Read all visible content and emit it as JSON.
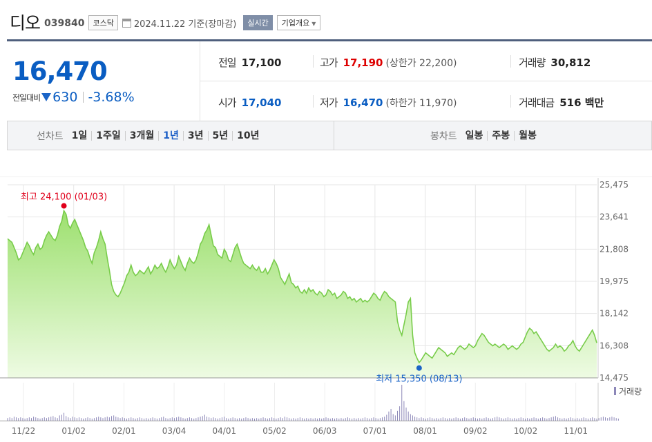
{
  "header": {
    "name": "디오",
    "code": "039840",
    "market": "코스닥",
    "date": "2024.11.22",
    "basis": "기준(장마감)",
    "realtime_label": "실시간",
    "company_label": "기업개요"
  },
  "summary": {
    "price": "16,470",
    "change_label": "전일대비",
    "change": "630",
    "change_pct": "-3.68%",
    "prev_label": "전일",
    "prev": "17,100",
    "high_label": "고가",
    "high": "17,190",
    "upper_limit": "(상한가 22,200)",
    "volume_label": "거래량",
    "volume": "30,812",
    "open_label": "시가",
    "open": "17,040",
    "low_label": "저가",
    "low": "16,470",
    "lower_limit": "(하한가 11,970)",
    "amount_label": "거래대금",
    "amount": "516 백만"
  },
  "period_bar": {
    "line_label": "선차트",
    "periods": [
      "1일",
      "1주일",
      "3개월",
      "1년",
      "3년",
      "5년",
      "10년"
    ],
    "active": "1년",
    "candle_label": "봉차트",
    "candle_periods": [
      "일봉",
      "주봉",
      "월봉"
    ]
  },
  "colors": {
    "line": "#78cc4a",
    "fill_top": "#9de06f",
    "fill_bottom": "#eefbe3",
    "max_marker": "#e0001b",
    "min_marker": "#1b64c7",
    "volume_bar": "#8c87b8"
  },
  "chart_data": {
    "type": "area",
    "y_ticks": [
      "25,475",
      "23,641",
      "21,808",
      "19,975",
      "18,142",
      "16,308",
      "14,475"
    ],
    "ylim": [
      14475,
      25475
    ],
    "x_labels": [
      "11/22",
      "01/02",
      "02/01",
      "03/04",
      "04/01",
      "05/02",
      "06/03",
      "07/01",
      "08/01",
      "09/02",
      "10/02",
      "11/01"
    ],
    "max_annotation": "최고 24,100 (01/03)",
    "min_annotation": "최저 15,350 (08/13)",
    "volume_legend": "거래량",
    "series": [
      {
        "values": [
          22400,
          22300,
          22200,
          21900,
          21600,
          21200,
          21300,
          21600,
          21900,
          22200,
          22000,
          21700,
          21500,
          21900,
          22100,
          21800,
          21900,
          22300,
          22600,
          22800,
          22600,
          22400,
          22300,
          22600,
          23100,
          23400,
          24000,
          23800,
          23200,
          23000,
          23300,
          23500,
          23200,
          22900,
          22600,
          22300,
          21900,
          21700,
          21300,
          21000,
          21600,
          21900,
          22300,
          22800,
          22400,
          22100,
          21300,
          20600,
          19800,
          19400,
          19200,
          19100,
          19300,
          19600,
          19900,
          20300,
          20500,
          20900,
          20500,
          20300,
          20400,
          20600,
          20500,
          20400,
          20600,
          20800,
          20400,
          20600,
          20900,
          20700,
          20800,
          21000,
          20700,
          20500,
          20800,
          21200,
          20900,
          20700,
          20900,
          21400,
          21100,
          20800,
          20600,
          21000,
          21300,
          21100,
          21000,
          21200,
          21600,
          22100,
          22300,
          22700,
          22900,
          23200,
          22600,
          22000,
          21900,
          21500,
          21400,
          21300,
          21800,
          21600,
          21200,
          21100,
          21500,
          21900,
          22100,
          21700,
          21300,
          21000,
          20900,
          20800,
          20700,
          20900,
          20700,
          20600,
          20800,
          20500,
          20500,
          20700,
          20400,
          20600,
          20900,
          21200,
          21000,
          20700,
          20200,
          20000,
          19800,
          20100,
          20400,
          19900,
          19800,
          19600,
          19700,
          19400,
          19300,
          19500,
          19300,
          19600,
          19400,
          19500,
          19300,
          19200,
          19400,
          19300,
          19100,
          19200,
          19500,
          19400,
          19200,
          19300,
          19000,
          19100,
          19200,
          19400,
          19300,
          19000,
          19100,
          18900,
          19000,
          18800,
          18900,
          19000,
          18800,
          18900,
          18800,
          18900,
          19100,
          19300,
          19200,
          19000,
          18900,
          19200,
          19400,
          19300,
          19100,
          19000,
          18900,
          18800,
          17700,
          17200,
          16900,
          17500,
          18100,
          18800,
          19000,
          16900,
          15900,
          15600,
          15350,
          15500,
          15700,
          15900,
          15800,
          15700,
          15600,
          15800,
          16000,
          16200,
          16100,
          16000,
          15900,
          15700,
          15800,
          15900,
          15800,
          16000,
          16200,
          16300,
          16200,
          16100,
          16200,
          16400,
          16300,
          16200,
          16300,
          16600,
          16800,
          17000,
          16900,
          16700,
          16500,
          16400,
          16300,
          16400,
          16300,
          16200,
          16300,
          16400,
          16300,
          16100,
          16200,
          16300,
          16200,
          16100,
          16200,
          16400,
          16500,
          16800,
          17100,
          17300,
          17200,
          17000,
          17100,
          16900,
          16700,
          16500,
          16300,
          16100,
          16000,
          16100,
          16200,
          16400,
          16200,
          16300,
          16200,
          16000,
          16100,
          16300,
          16400,
          16600,
          16300,
          16100,
          16000,
          16200,
          16400,
          16600,
          16800,
          17000,
          17200,
          16900,
          16470
        ]
      }
    ],
    "volume": [
      4,
      5,
      4,
      6,
      5,
      4,
      5,
      4,
      3,
      4,
      5,
      4,
      6,
      5,
      4,
      3,
      4,
      5,
      4,
      5,
      6,
      7,
      5,
      4,
      8,
      9,
      12,
      7,
      5,
      4,
      6,
      5,
      4,
      5,
      4,
      3,
      4,
      5,
      4,
      3,
      4,
      5,
      6,
      5,
      4,
      5,
      6,
      5,
      7,
      8,
      6,
      5,
      4,
      5,
      4,
      3,
      4,
      5,
      4,
      3,
      4,
      5,
      4,
      3,
      4,
      3,
      4,
      5,
      4,
      3,
      4,
      5,
      6,
      4,
      3,
      4,
      5,
      4,
      5,
      6,
      5,
      4,
      3,
      4,
      5,
      4,
      3,
      4,
      5,
      6,
      7,
      9,
      6,
      5,
      4,
      5,
      4,
      3,
      4,
      5,
      6,
      4,
      3,
      4,
      5,
      4,
      3,
      4,
      3,
      4,
      5,
      4,
      3,
      4,
      3,
      4,
      3,
      4,
      5,
      4,
      3,
      4,
      5,
      4,
      3,
      4,
      5,
      4,
      6,
      5,
      4,
      3,
      4,
      3,
      4,
      5,
      4,
      3,
      4,
      3,
      4,
      3,
      4,
      3,
      4,
      3,
      4,
      5,
      4,
      3,
      4,
      3,
      4,
      3,
      4,
      3,
      4,
      5,
      4,
      3,
      4,
      3,
      4,
      3,
      4,
      5,
      4,
      3,
      4,
      5,
      4,
      3,
      4,
      5,
      6,
      9,
      14,
      18,
      10,
      8,
      15,
      22,
      55,
      30,
      20,
      14,
      10,
      8,
      6,
      5,
      4,
      5,
      4,
      3,
      4,
      5,
      4,
      3,
      4,
      3,
      4,
      5,
      4,
      3,
      4,
      3,
      4,
      5,
      4,
      3,
      4,
      5,
      4,
      3,
      4,
      5,
      4,
      3,
      4,
      3,
      4,
      5,
      4,
      3,
      4,
      5,
      6,
      5,
      4,
      3,
      4,
      5,
      4,
      3,
      4,
      3,
      4,
      5,
      4,
      3,
      4,
      3,
      4,
      5,
      4,
      3,
      4,
      5,
      4,
      3,
      4,
      5,
      6,
      7,
      5,
      4,
      3,
      4,
      3,
      4,
      5,
      4,
      3,
      4,
      3,
      4,
      5,
      4,
      3,
      4,
      5,
      4,
      3,
      4,
      5,
      6,
      5,
      4,
      5,
      6,
      5,
      4,
      3
    ]
  }
}
